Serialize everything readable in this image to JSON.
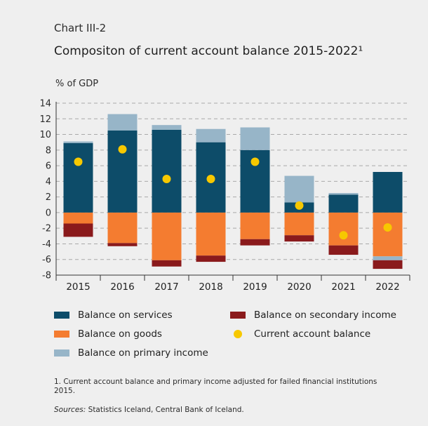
{
  "chart_label": "Chart III-2",
  "chart_data": {
    "type": "bar",
    "stacked": true,
    "title": "Compositon of current account balance 2015-2022¹",
    "ylabel": "% of GDP",
    "xlabel": "",
    "ylim": [
      -8,
      14
    ],
    "yticks": [
      14,
      12,
      10,
      8,
      6,
      4,
      2,
      0,
      -2,
      -4,
      -6,
      -8
    ],
    "grid": true,
    "legend_position": "bottom",
    "categories": [
      "2015",
      "2016",
      "2017",
      "2018",
      "2019",
      "2020",
      "2021",
      "2022"
    ],
    "series": [
      {
        "name": "Balance on services",
        "kind": "bar",
        "color": "#0d4c69",
        "values": [
          8.9,
          10.5,
          10.6,
          9.0,
          8.0,
          1.3,
          2.3,
          5.2
        ]
      },
      {
        "name": "Balance on goods",
        "kind": "bar",
        "color": "#f47c30",
        "values": [
          -1.4,
          -3.9,
          -6.1,
          -5.5,
          -3.4,
          -2.9,
          -4.2,
          -5.6
        ]
      },
      {
        "name": "Balance on primary income",
        "kind": "bar",
        "color": "#97b5c8",
        "values": [
          0.2,
          2.1,
          0.6,
          1.7,
          2.9,
          3.4,
          0.2,
          -0.5
        ]
      },
      {
        "name": "Balance on secondary income",
        "kind": "bar",
        "color": "#8a1a1c",
        "values": [
          -1.7,
          -0.4,
          -0.8,
          -0.8,
          -0.8,
          -0.8,
          -1.2,
          -1.1
        ]
      },
      {
        "name": "Current account balance",
        "kind": "dot",
        "color": "#f7c800",
        "values": [
          6.5,
          8.1,
          4.3,
          4.3,
          6.5,
          0.9,
          -2.9,
          -1.9
        ]
      }
    ]
  },
  "legend": [
    {
      "label": "Balance on services",
      "color": "#0d4c69",
      "shape": "box"
    },
    {
      "label": "Balance on secondary income",
      "color": "#8a1a1c",
      "shape": "box"
    },
    {
      "label": "Balance on goods",
      "color": "#f47c30",
      "shape": "box"
    },
    {
      "label": "Current account balance",
      "color": "#f7c800",
      "shape": "dot"
    },
    {
      "label": "Balance on primary income",
      "color": "#97b5c8",
      "shape": "box"
    }
  ],
  "footnote": "1. Current account balance and primary income adjusted for failed financial institutions 2015.",
  "sources": {
    "label": "Sources:",
    "text": " Statistics Iceland, Central Bank of Iceland."
  }
}
